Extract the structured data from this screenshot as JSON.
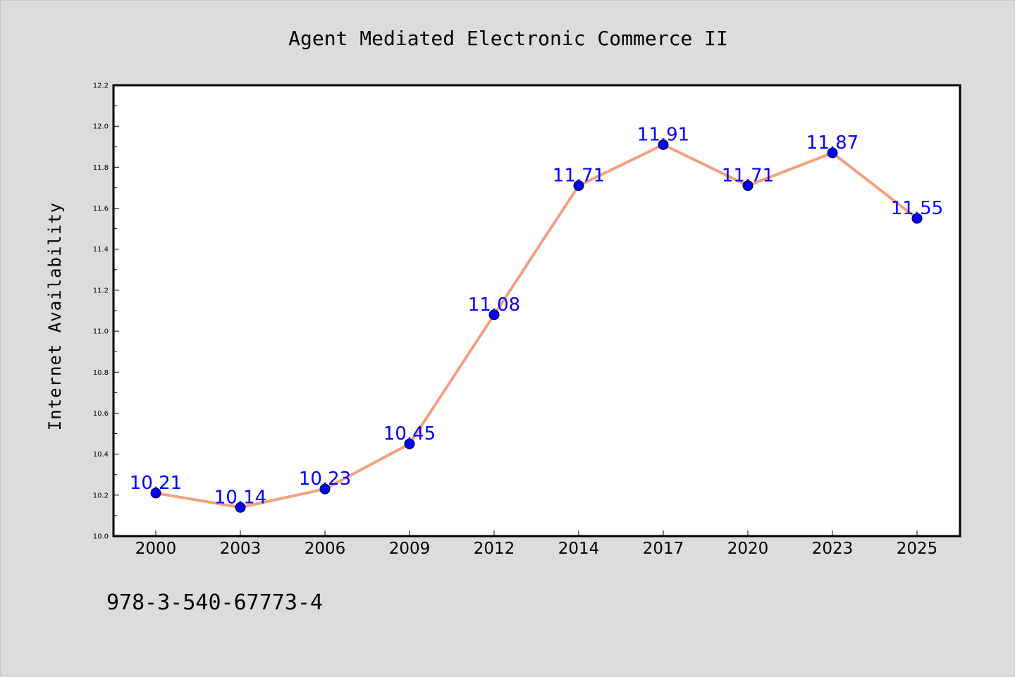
{
  "chart_data": {
    "type": "line",
    "title": "Agent Mediated Electronic Commerce II",
    "xlabel": "",
    "ylabel": "Internet Availability",
    "categories": [
      "2000",
      "2003",
      "2006",
      "2009",
      "2012",
      "2014",
      "2017",
      "2020",
      "2023",
      "2025"
    ],
    "values": [
      10.21,
      10.14,
      10.23,
      10.45,
      11.08,
      11.71,
      11.91,
      11.71,
      11.87,
      11.55
    ],
    "data_labels": [
      "10.21",
      "10.14",
      "10.23",
      "10.45",
      "11.08",
      "11.71",
      "11.91",
      "11.71",
      "11.87",
      "11.55"
    ],
    "ylim": [
      10.0,
      12.2
    ],
    "yticks": [
      "10.0",
      "10.2",
      "10.4",
      "10.6",
      "10.8",
      "11.0",
      "11.2",
      "11.4",
      "11.6",
      "11.8",
      "12.0",
      "12.2"
    ],
    "grid": false,
    "line_color": "#f4a07e",
    "marker_color": "#0000ff",
    "label_color": "#0000ff"
  },
  "footer": {
    "text": "978-3-540-67773-4"
  }
}
